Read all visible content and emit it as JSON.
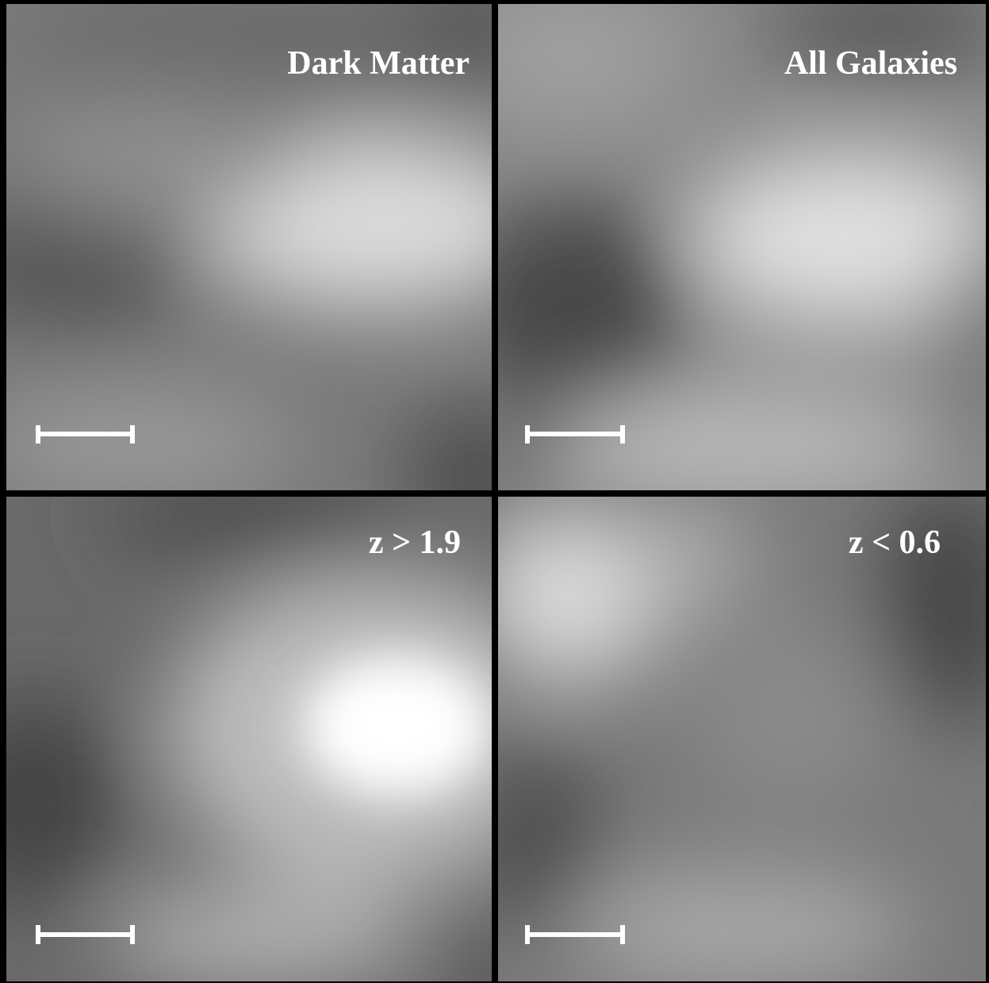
{
  "panels": [
    {
      "label": "Dark Matter"
    },
    {
      "label": "All Galaxies"
    },
    {
      "label": "z > 1.9"
    },
    {
      "label": "z < 0.6"
    }
  ]
}
